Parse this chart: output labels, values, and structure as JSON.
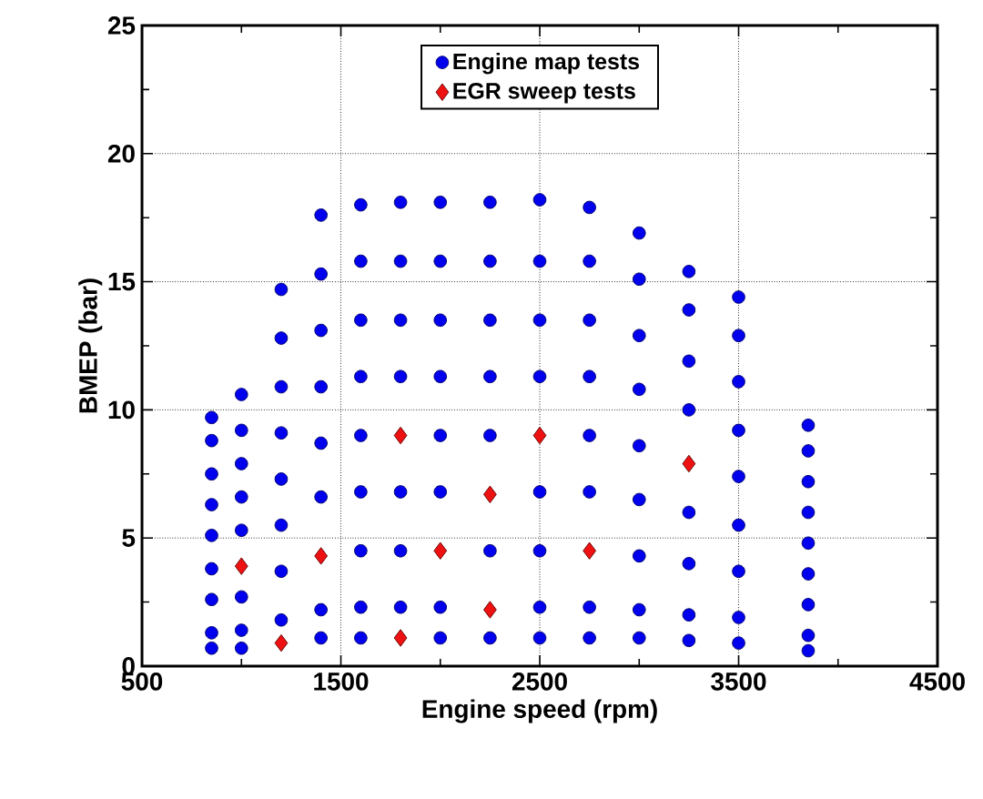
{
  "chart_data": {
    "type": "scatter",
    "xlabel": "Engine speed (rpm)",
    "ylabel": "BMEP (bar)",
    "xlim": [
      500,
      4500
    ],
    "xticks": [
      500,
      1500,
      2500,
      3500,
      4500
    ],
    "ylim": [
      0,
      25
    ],
    "yticks": [
      0,
      5,
      10,
      15,
      20,
      25
    ],
    "grid": true,
    "legend": "top",
    "series": [
      {
        "name": "Engine map tests",
        "color": "#0000ee",
        "marker": "circle",
        "x": [
          850,
          850,
          850,
          850,
          850,
          850,
          850,
          850,
          850,
          1000,
          1000,
          1000,
          1000,
          1000,
          1000,
          1000,
          1000,
          1200,
          1200,
          1200,
          1200,
          1200,
          1200,
          1200,
          1200,
          1400,
          1400,
          1400,
          1400,
          1400,
          1400,
          1400,
          1400,
          1600,
          1600,
          1600,
          1600,
          1600,
          1600,
          1600,
          1600,
          1600,
          1800,
          1800,
          1800,
          1800,
          1800,
          1800,
          1800,
          2000,
          2000,
          2000,
          2000,
          2000,
          2000,
          2000,
          2000,
          2250,
          2250,
          2250,
          2250,
          2250,
          2250,
          2250,
          2500,
          2500,
          2500,
          2500,
          2500,
          2500,
          2500,
          2500,
          2750,
          2750,
          2750,
          2750,
          2750,
          2750,
          2750,
          2750,
          3000,
          3000,
          3000,
          3000,
          3000,
          3000,
          3000,
          3000,
          3000,
          3250,
          3250,
          3250,
          3250,
          3250,
          3250,
          3250,
          3250,
          3500,
          3500,
          3500,
          3500,
          3500,
          3500,
          3500,
          3500,
          3500,
          3850,
          3850,
          3850,
          3850,
          3850,
          3850,
          3850,
          3850,
          3850
        ],
        "values": [
          9.7,
          8.8,
          7.5,
          6.3,
          5.1,
          3.8,
          2.6,
          1.3,
          0.7,
          10.6,
          9.2,
          7.9,
          6.6,
          5.3,
          2.7,
          1.4,
          0.7,
          14.7,
          12.8,
          10.9,
          9.1,
          7.3,
          5.5,
          3.7,
          1.8,
          17.6,
          15.3,
          13.1,
          10.9,
          8.7,
          6.6,
          2.2,
          1.1,
          18.0,
          15.8,
          13.5,
          11.3,
          9.0,
          6.8,
          4.5,
          2.3,
          1.1,
          18.1,
          15.8,
          13.5,
          11.3,
          6.8,
          4.5,
          2.3,
          18.1,
          15.8,
          13.5,
          11.3,
          9.0,
          6.8,
          2.3,
          1.1,
          18.1,
          15.8,
          13.5,
          11.3,
          9.0,
          4.5,
          1.1,
          18.2,
          15.8,
          13.5,
          11.3,
          6.8,
          4.5,
          2.3,
          1.1,
          17.9,
          15.8,
          13.5,
          11.3,
          9.0,
          6.8,
          2.3,
          1.1,
          16.9,
          15.1,
          12.9,
          10.8,
          8.6,
          6.5,
          4.3,
          2.2,
          1.1,
          15.4,
          13.9,
          11.9,
          10.0,
          6.0,
          4.0,
          2.0,
          1.0,
          14.4,
          12.9,
          11.1,
          9.2,
          7.4,
          5.5,
          3.7,
          1.9,
          0.9,
          9.4,
          8.4,
          7.2,
          6.0,
          4.8,
          3.6,
          2.4,
          1.2,
          0.6
        ]
      },
      {
        "name": "EGR sweep tests",
        "color": "#ee1111",
        "marker": "diamond",
        "x": [
          1000,
          1200,
          1400,
          1800,
          1800,
          2000,
          2250,
          2250,
          2500,
          2750,
          3250
        ],
        "values": [
          3.9,
          0.9,
          4.3,
          9.0,
          1.1,
          4.5,
          6.7,
          2.2,
          9.0,
          4.5,
          7.9
        ]
      }
    ]
  }
}
